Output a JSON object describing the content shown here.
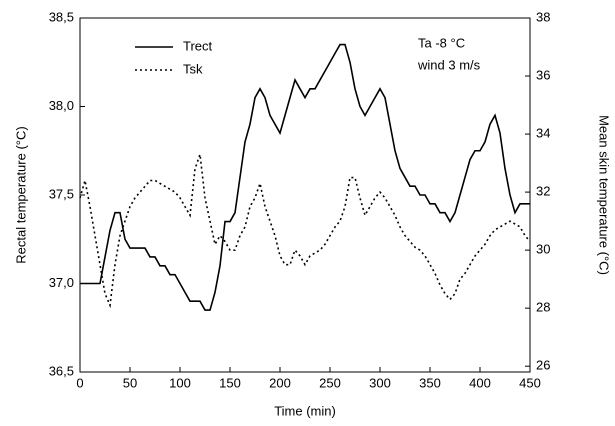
{
  "chart_data": {
    "type": "line",
    "xlabel": "Time (min)",
    "ylabel": "Rectal temperature (°C)",
    "y2label": "Mean skin temperature (°C)",
    "annotations": [
      "Ta -8 °C",
      "wind 3 m/s"
    ],
    "legend": "upper left",
    "x": [
      0,
      5,
      10,
      15,
      20,
      25,
      30,
      35,
      40,
      45,
      50,
      55,
      60,
      65,
      70,
      75,
      80,
      85,
      90,
      95,
      100,
      105,
      110,
      115,
      120,
      125,
      130,
      135,
      140,
      145,
      150,
      155,
      160,
      165,
      170,
      175,
      180,
      185,
      190,
      195,
      200,
      205,
      210,
      215,
      220,
      225,
      230,
      235,
      240,
      245,
      250,
      255,
      260,
      265,
      270,
      275,
      280,
      285,
      290,
      295,
      300,
      305,
      310,
      315,
      320,
      325,
      330,
      335,
      340,
      345,
      350,
      355,
      360,
      365,
      370,
      375,
      380,
      385,
      390,
      395,
      400,
      405,
      410,
      415,
      420,
      425,
      430,
      435,
      440,
      445,
      450
    ],
    "xlim": [
      0,
      450
    ],
    "xticks": [
      0,
      50,
      100,
      150,
      200,
      250,
      300,
      350,
      400,
      450
    ],
    "ylim": [
      36.5,
      38.5
    ],
    "yticks": [
      {
        "value": 36.5,
        "label": "36,5"
      },
      {
        "value": 37.0,
        "label": "37,0"
      },
      {
        "value": 37.5,
        "label": "37,5"
      },
      {
        "value": 38.0,
        "label": "38,0"
      },
      {
        "value": 38.5,
        "label": "38,5"
      }
    ],
    "y2lim": [
      25.8,
      38
    ],
    "y2ticks": [
      26,
      28,
      30,
      32,
      34,
      36,
      38
    ],
    "series": [
      {
        "name": "Trect",
        "color": "#000000",
        "dash": "none",
        "values": [
          37.0,
          37.0,
          37.0,
          37.0,
          37.0,
          37.15,
          37.3,
          37.4,
          37.4,
          37.25,
          37.2,
          37.2,
          37.2,
          37.2,
          37.15,
          37.15,
          37.1,
          37.1,
          37.05,
          37.05,
          37.0,
          36.95,
          36.9,
          36.9,
          36.9,
          36.85,
          36.85,
          36.95,
          37.1,
          37.35,
          37.35,
          37.4,
          37.6,
          37.8,
          37.9,
          38.05,
          38.1,
          38.05,
          37.95,
          37.9,
          37.85,
          37.95,
          38.05,
          38.15,
          38.1,
          38.05,
          38.1,
          38.1,
          38.15,
          38.2,
          38.25,
          38.3,
          38.35,
          38.35,
          38.25,
          38.1,
          38.0,
          37.95,
          38.0,
          38.05,
          38.1,
          38.05,
          37.9,
          37.75,
          37.65,
          37.6,
          37.55,
          37.55,
          37.5,
          37.5,
          37.45,
          37.45,
          37.4,
          37.4,
          37.35,
          37.4,
          37.5,
          37.6,
          37.7,
          37.75,
          37.75,
          37.8,
          37.9,
          37.95,
          37.85,
          37.65,
          37.5,
          37.4,
          37.45,
          37.45,
          37.45
        ]
      },
      {
        "name": "Tsk",
        "color": "#000000",
        "dash": "2 3",
        "axis": "y2",
        "values": [
          31.8,
          32.4,
          31.5,
          30.5,
          29.5,
          28.5,
          28.1,
          29.5,
          30.5,
          31.0,
          31.5,
          31.8,
          32.0,
          32.2,
          32.4,
          32.4,
          32.3,
          32.2,
          32.1,
          32.0,
          31.8,
          31.5,
          31.2,
          32.8,
          33.3,
          31.8,
          31.0,
          30.2,
          30.5,
          30.3,
          30.0,
          30.0,
          30.5,
          30.8,
          31.5,
          31.8,
          32.3,
          31.5,
          31.0,
          30.5,
          29.8,
          29.5,
          29.5,
          30.0,
          29.8,
          29.5,
          29.8,
          29.9,
          30.0,
          30.2,
          30.5,
          30.8,
          31.0,
          31.5,
          32.5,
          32.5,
          31.8,
          31.2,
          31.5,
          31.8,
          32.0,
          31.8,
          31.5,
          31.2,
          30.8,
          30.5,
          30.3,
          30.1,
          30.0,
          29.8,
          29.5,
          29.2,
          28.8,
          28.5,
          28.3,
          28.5,
          29.0,
          29.2,
          29.5,
          29.8,
          30.0,
          30.2,
          30.5,
          30.7,
          30.8,
          30.9,
          31.0,
          30.9,
          30.8,
          30.5,
          30.3
        ]
      }
    ]
  }
}
